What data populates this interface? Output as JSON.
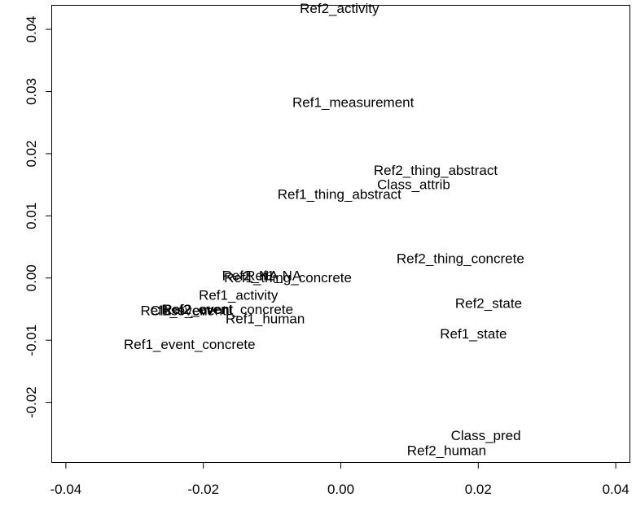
{
  "chart_data": {
    "type": "scatter",
    "title": "",
    "xlabel": "",
    "ylabel": "",
    "xlim": [
      -0.042,
      0.042
    ],
    "ylim": [
      -0.0296,
      0.0438
    ],
    "grid": false,
    "legend": "none",
    "x_ticks": [
      -0.04,
      -0.02,
      0.0,
      0.02,
      0.04
    ],
    "x_tick_labels": [
      "-0.04",
      "-0.02",
      "0.00",
      "0.02",
      "0.04"
    ],
    "y_ticks": [
      -0.02,
      -0.01,
      0.0,
      0.01,
      0.02,
      0.03,
      0.04
    ],
    "y_tick_labels": [
      "-0.02",
      "-0.01",
      "0.00",
      "0.01",
      "0.02",
      "0.03",
      "0.04"
    ],
    "points": [
      {
        "label": "Ref2_activity",
        "x": -0.0002,
        "y": 0.0434
      },
      {
        "label": "Ref1_measurement",
        "x": 0.0018,
        "y": 0.0283
      },
      {
        "label": "Ref2_thing_abstract",
        "x": 0.0138,
        "y": 0.0174
      },
      {
        "label": "Class_attrib",
        "x": 0.0106,
        "y": 0.0151
      },
      {
        "label": "Ref1_thing_abstract",
        "x": -0.0002,
        "y": 0.0135
      },
      {
        "label": "Ref2_thing_concrete",
        "x": 0.0174,
        "y": 0.0032
      },
      {
        "label": "Ref2_NA",
        "x": -0.0132,
        "y": 0.0004
      },
      {
        "label": "Ref1_thing_concrete",
        "x": -0.0077,
        "y": 0.0001
      },
      {
        "label": "Ref1_NA",
        "x": -0.0098,
        "y": 0.0004
      },
      {
        "label": "Ref1_activity",
        "x": -0.0149,
        "y": -0.0027
      },
      {
        "label": "Ref2_state",
        "x": 0.0215,
        "y": -0.004
      },
      {
        "label": "Class_event",
        "x": -0.0222,
        "y": -0.0052
      },
      {
        "label": "Ref2_event",
        "x": -0.0208,
        "y": -0.005
      },
      {
        "label": "Ref1_event",
        "x": -0.024,
        "y": -0.0052
      },
      {
        "label": "Ref2_event_concrete",
        "x": -0.0165,
        "y": -0.005
      },
      {
        "label": "Ref1_human",
        "x": -0.011,
        "y": -0.0065
      },
      {
        "label": "Ref1_state",
        "x": 0.0193,
        "y": -0.0089
      },
      {
        "label": "Ref1_event_concrete",
        "x": -0.022,
        "y": -0.0106
      },
      {
        "label": "Class_pred",
        "x": 0.0211,
        "y": -0.0253
      },
      {
        "label": "Ref2_human",
        "x": 0.0154,
        "y": -0.0277
      }
    ]
  }
}
